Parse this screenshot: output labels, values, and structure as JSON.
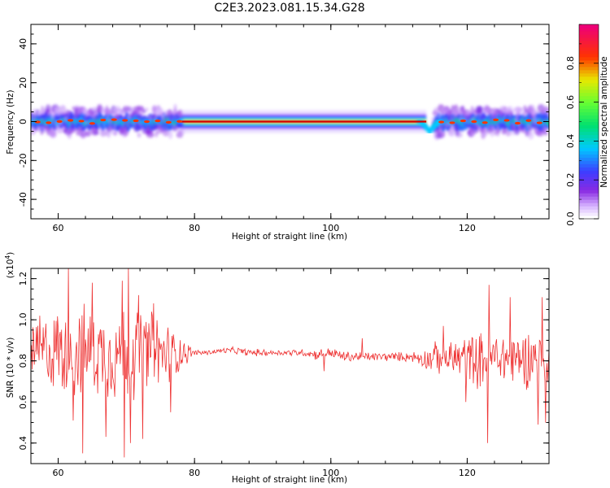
{
  "title": "C2E3.2023.081.15.34.G28",
  "colors": {
    "snr_line": "#ee3333",
    "background": "#ffffff",
    "ridge_core": "#d40000"
  },
  "chart_data": [
    {
      "type": "heatmap",
      "xlabel": "Height of straight line (km)",
      "ylabel": "Frequency (Hz)",
      "xlim": [
        56,
        132
      ],
      "ylim": [
        -50,
        50
      ],
      "x_ticks": [
        "60",
        "80",
        "100",
        "120"
      ],
      "y_ticks": [
        "40",
        "20",
        "0",
        "-20",
        "-40"
      ],
      "colorbar": {
        "label": "Normalized spectral amplitude",
        "range": [
          0,
          1
        ],
        "ticks": [
          "0.0",
          "0.2",
          "0.4",
          "0.6",
          "0.8"
        ],
        "colormap": "rainbow (white-violet-blue-cyan-green-yellow-red-magenta)"
      },
      "ridge": {
        "description": "Narrow high-amplitude band centred near 0 Hz; noisy and broad (about ±5 Hz) from 56–78 km and 115–132 km, smooth and narrow from 78–114 km, with a dip to about -5 Hz near 114 km",
        "center_hz": 0,
        "noisy_ranges_km": [
          [
            56,
            78
          ],
          [
            115,
            132
          ]
        ],
        "smooth_range_km": [
          78,
          114
        ],
        "dip": {
          "x_km": 114.5,
          "freq_hz": -5
        }
      }
    },
    {
      "type": "line",
      "xlabel": "Height of straight line (km)",
      "ylabel": "SNR (10 * v/v)",
      "y_multiplier_base": "(x10",
      "y_multiplier_exp": "4",
      "y_multiplier_close": ")",
      "xlim": [
        56,
        132
      ],
      "ylim": [
        0.3,
        1.25
      ],
      "x_ticks": [
        "60",
        "80",
        "100",
        "120"
      ],
      "y_ticks": [
        "0.4",
        "0.6",
        "0.8",
        "1.0",
        "1.2"
      ],
      "series": [
        {
          "x": [
            56,
            58,
            60,
            62,
            64,
            66,
            68,
            70,
            72,
            74,
            76,
            78,
            80,
            82,
            84,
            86,
            88,
            90,
            92,
            94,
            96,
            98,
            100,
            102,
            104,
            106,
            108,
            110,
            112,
            114,
            116,
            118,
            120,
            122,
            124,
            126,
            128,
            130,
            132
          ],
          "values": [
            0.84,
            0.85,
            0.84,
            0.83,
            0.85,
            0.84,
            0.83,
            0.84,
            0.85,
            0.84,
            0.83,
            0.84,
            0.84,
            0.84,
            0.85,
            0.85,
            0.84,
            0.84,
            0.84,
            0.84,
            0.84,
            0.83,
            0.84,
            0.82,
            0.82,
            0.82,
            0.82,
            0.82,
            0.82,
            0.81,
            0.82,
            0.81,
            0.82,
            0.8,
            0.82,
            0.81,
            0.81,
            0.82,
            0.8
          ],
          "spread": [
            0.15,
            0.2,
            0.24,
            0.25,
            0.25,
            0.24,
            0.26,
            0.28,
            0.24,
            0.24,
            0.18,
            0.1,
            0.015,
            0.015,
            0.015,
            0.02,
            0.02,
            0.02,
            0.015,
            0.02,
            0.02,
            0.03,
            0.03,
            0.03,
            0.03,
            0.025,
            0.025,
            0.025,
            0.03,
            0.06,
            0.1,
            0.12,
            0.13,
            0.16,
            0.16,
            0.15,
            0.16,
            0.17,
            0.15
          ]
        }
      ],
      "notable_points": [
        {
          "x": 57.3,
          "y": 1.02
        },
        {
          "x": 60,
          "y": 0.96
        },
        {
          "x": 61.5,
          "y": 1.25
        },
        {
          "x": 62.2,
          "y": 0.51
        },
        {
          "x": 63.6,
          "y": 0.35
        },
        {
          "x": 65,
          "y": 1.18
        },
        {
          "x": 67,
          "y": 0.43
        },
        {
          "x": 69.4,
          "y": 1.19
        },
        {
          "x": 69.7,
          "y": 0.33
        },
        {
          "x": 70.3,
          "y": 1.25
        },
        {
          "x": 70.6,
          "y": 0.4
        },
        {
          "x": 71.8,
          "y": 1.12
        },
        {
          "x": 72.4,
          "y": 0.42
        },
        {
          "x": 74,
          "y": 1.08
        },
        {
          "x": 76.5,
          "y": 0.55
        },
        {
          "x": 99,
          "y": 0.75
        },
        {
          "x": 104.6,
          "y": 0.91
        },
        {
          "x": 116.5,
          "y": 0.97
        },
        {
          "x": 119.8,
          "y": 0.6
        },
        {
          "x": 123,
          "y": 0.4
        },
        {
          "x": 123.2,
          "y": 1.17
        },
        {
          "x": 126.3,
          "y": 1.11
        },
        {
          "x": 130.4,
          "y": 0.49
        },
        {
          "x": 131,
          "y": 1.11
        },
        {
          "x": 131.5,
          "y": 0.5
        }
      ]
    }
  ]
}
